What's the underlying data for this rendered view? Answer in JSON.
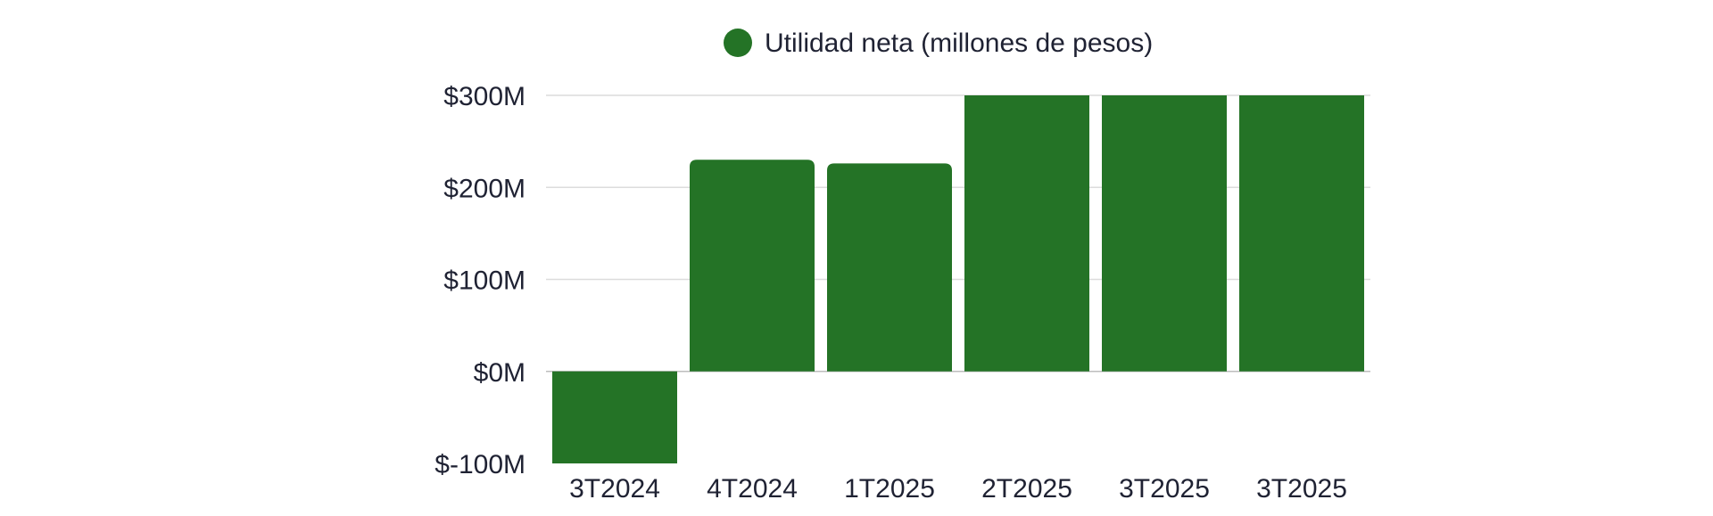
{
  "chart_data": {
    "type": "bar",
    "legend": {
      "label": "Utilidad neta (millones de pesos)",
      "color": "#247326",
      "position": "top-center"
    },
    "categories": [
      "3T2024",
      "4T2024",
      "1T2025",
      "2T2025",
      "3T2025",
      "3T2025"
    ],
    "series": [
      {
        "name": "Utilidad neta (millones de pesos)",
        "values": [
          -100,
          230,
          226,
          300,
          300,
          300
        ],
        "color": "#247326"
      }
    ],
    "y_ticks": [
      {
        "value": 300,
        "label": "$300M"
      },
      {
        "value": 200,
        "label": "$200M"
      },
      {
        "value": 100,
        "label": "$100M"
      },
      {
        "value": 0,
        "label": "$0M"
      },
      {
        "value": -100,
        "label": "$-100M"
      }
    ],
    "ylim": [
      -100,
      300
    ],
    "grid": true,
    "title": "",
    "xlabel": "",
    "ylabel": ""
  }
}
